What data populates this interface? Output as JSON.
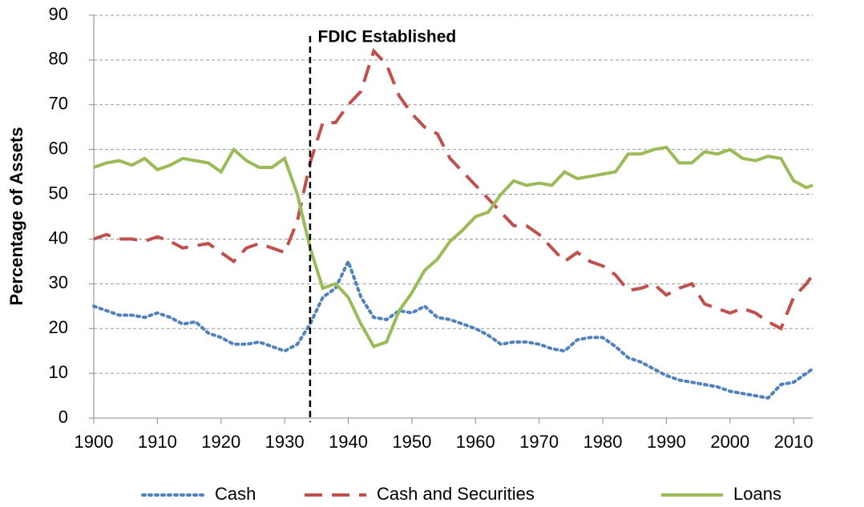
{
  "chart_data": {
    "type": "line",
    "y_label": "Percentage of Assets",
    "annotation": {
      "text": "FDIC Established",
      "x": 1934
    },
    "x": [
      1900,
      1902,
      1904,
      1906,
      1908,
      1910,
      1912,
      1914,
      1916,
      1918,
      1920,
      1922,
      1924,
      1926,
      1928,
      1930,
      1932,
      1934,
      1936,
      1938,
      1940,
      1942,
      1944,
      1946,
      1948,
      1950,
      1952,
      1954,
      1956,
      1958,
      1960,
      1962,
      1964,
      1966,
      1968,
      1970,
      1972,
      1974,
      1976,
      1978,
      1980,
      1982,
      1984,
      1986,
      1988,
      1990,
      1992,
      1994,
      1996,
      1998,
      2000,
      2002,
      2004,
      2006,
      2008,
      2010,
      2012,
      2013
    ],
    "series": [
      {
        "name": "Cash",
        "color": "#4f81bd",
        "dash": "dotted",
        "values": [
          25,
          24,
          23,
          23,
          22.5,
          23.5,
          22.5,
          21,
          21.5,
          19,
          18,
          16.5,
          16.5,
          17,
          16,
          15,
          16.5,
          21,
          27,
          29,
          35,
          27,
          22.5,
          22,
          24,
          23.5,
          25,
          22.5,
          22,
          21,
          20,
          18.5,
          16.5,
          17,
          17,
          16.5,
          15.5,
          15,
          17.5,
          18,
          18,
          16,
          13.5,
          12.5,
          11,
          9.5,
          8.5,
          8,
          7.5,
          7,
          6,
          5.5,
          5,
          4.5,
          7.5,
          8,
          10,
          11
        ]
      },
      {
        "name": "Cash and Securities",
        "color": "#c0504d",
        "dash": "dashed",
        "values": [
          40,
          41,
          40,
          40,
          39.5,
          40.5,
          39.5,
          38,
          38.5,
          39,
          37,
          35,
          38,
          39,
          38,
          37,
          44,
          57,
          66,
          66,
          70,
          73,
          82,
          79,
          72,
          68,
          65,
          63.5,
          58,
          55,
          52,
          49,
          46,
          43,
          43,
          41,
          38,
          35,
          37,
          35,
          34,
          32,
          28.5,
          29,
          30,
          27.5,
          29,
          30,
          25.5,
          24.5,
          23.5,
          24.5,
          23.5,
          21.5,
          20,
          27,
          30,
          32
        ]
      },
      {
        "name": "Loans",
        "color": "#9bbb59",
        "dash": "solid",
        "values": [
          56,
          57,
          57.5,
          56.5,
          58,
          55.5,
          56.5,
          58,
          57.5,
          57,
          55,
          60,
          57.5,
          56,
          56,
          58,
          50,
          38,
          29,
          30,
          27,
          21,
          16,
          17,
          24,
          28,
          33,
          35.5,
          39.5,
          42,
          45,
          46,
          50,
          53,
          52,
          52.5,
          52,
          55,
          53.5,
          54,
          54.5,
          55,
          59,
          59,
          60,
          60.5,
          57,
          57,
          59.5,
          59,
          60,
          58,
          57.5,
          58.5,
          58,
          53,
          51.5,
          52
        ]
      }
    ],
    "xlim": [
      1900,
      2013
    ],
    "ylim": [
      0,
      90
    ],
    "xticks": [
      1900,
      1910,
      1920,
      1930,
      1940,
      1950,
      1960,
      1970,
      1980,
      1990,
      2000,
      2010
    ],
    "yticks": [
      0,
      10,
      20,
      30,
      40,
      50,
      60,
      70,
      80,
      90
    ],
    "grid": true,
    "legend": "bottom"
  }
}
